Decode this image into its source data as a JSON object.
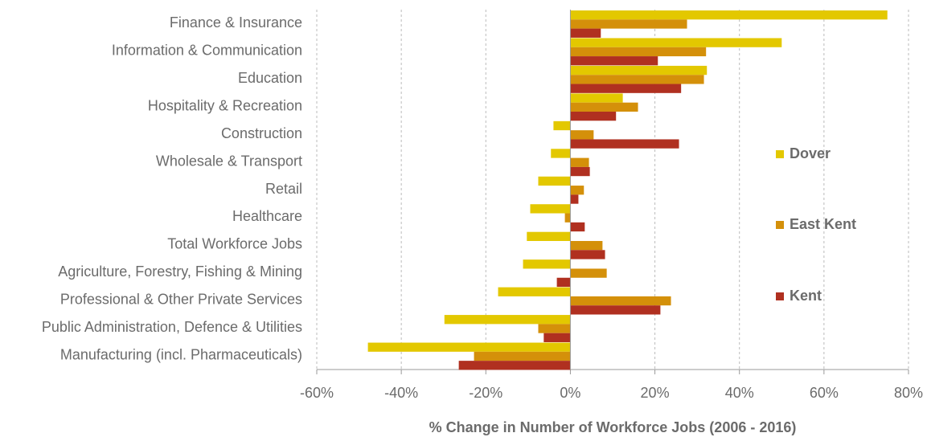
{
  "chart_data": {
    "type": "hbar",
    "xlabel": "% Change in Number of Workforce Jobs (2006 - 2016)",
    "categories": [
      "Finance & Insurance",
      "Information & Communication",
      "Education",
      "Hospitality & Recreation",
      "Construction",
      "Wholesale & Transport",
      "Retail",
      "Healthcare",
      "Total Workforce Jobs",
      "Agriculture, Forestry, Fishing & Mining",
      "Professional & Other Private Services",
      "Public Administration, Defence & Utilities",
      "Manufacturing (incl. Pharmaceuticals)"
    ],
    "series": [
      {
        "name": "Dover",
        "color": "#e3c800",
        "values": [
          75,
          50,
          32.3,
          12.4,
          -4,
          -4.6,
          -7.6,
          -9.5,
          -10.3,
          -11.2,
          -17.1,
          -29.8,
          -47.9
        ]
      },
      {
        "name": "East Kent",
        "color": "#d4900a",
        "values": [
          27.6,
          32.1,
          31.6,
          16,
          5.5,
          4.4,
          3.2,
          -1.3,
          7.6,
          8.6,
          23.8,
          -7.6,
          -22.8
        ]
      },
      {
        "name": "Kent",
        "color": "#b03020",
        "values": [
          7.2,
          20.7,
          26.2,
          10.8,
          25.7,
          4.6,
          1.9,
          3.4,
          8.2,
          -3.2,
          21.3,
          -6.3,
          -26.4
        ]
      }
    ],
    "xlim": [
      -60,
      80
    ],
    "xticks": [
      {
        "value": -60,
        "label": "-60%"
      },
      {
        "value": -40,
        "label": "-40%"
      },
      {
        "value": -20,
        "label": "-20%"
      },
      {
        "value": 0,
        "label": "0%"
      },
      {
        "value": 20,
        "label": "20%"
      },
      {
        "value": 40,
        "label": "40%"
      },
      {
        "value": 60,
        "label": "60%"
      },
      {
        "value": 80,
        "label": "80%"
      }
    ],
    "grid": true,
    "legend_position": "right"
  }
}
